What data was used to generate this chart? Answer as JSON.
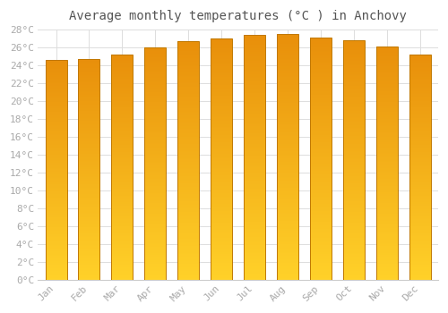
{
  "title": "Average monthly temperatures (°C ) in Anchovy",
  "months": [
    "Jan",
    "Feb",
    "Mar",
    "Apr",
    "May",
    "Jun",
    "Jul",
    "Aug",
    "Sep",
    "Oct",
    "Nov",
    "Dec"
  ],
  "values": [
    24.6,
    24.7,
    25.2,
    26.0,
    26.7,
    27.0,
    27.4,
    27.5,
    27.1,
    26.8,
    26.1,
    25.2
  ],
  "bar_color_top": "#E8900A",
  "bar_color_bottom": "#FFD040",
  "bar_edge_color": "#C07800",
  "background_color": "#FFFFFF",
  "grid_color": "#DDDDDD",
  "tick_label_color": "#AAAAAA",
  "title_color": "#555555",
  "ylim": [
    0,
    28
  ],
  "ytick_step": 2,
  "title_fontsize": 10,
  "tick_fontsize": 8
}
